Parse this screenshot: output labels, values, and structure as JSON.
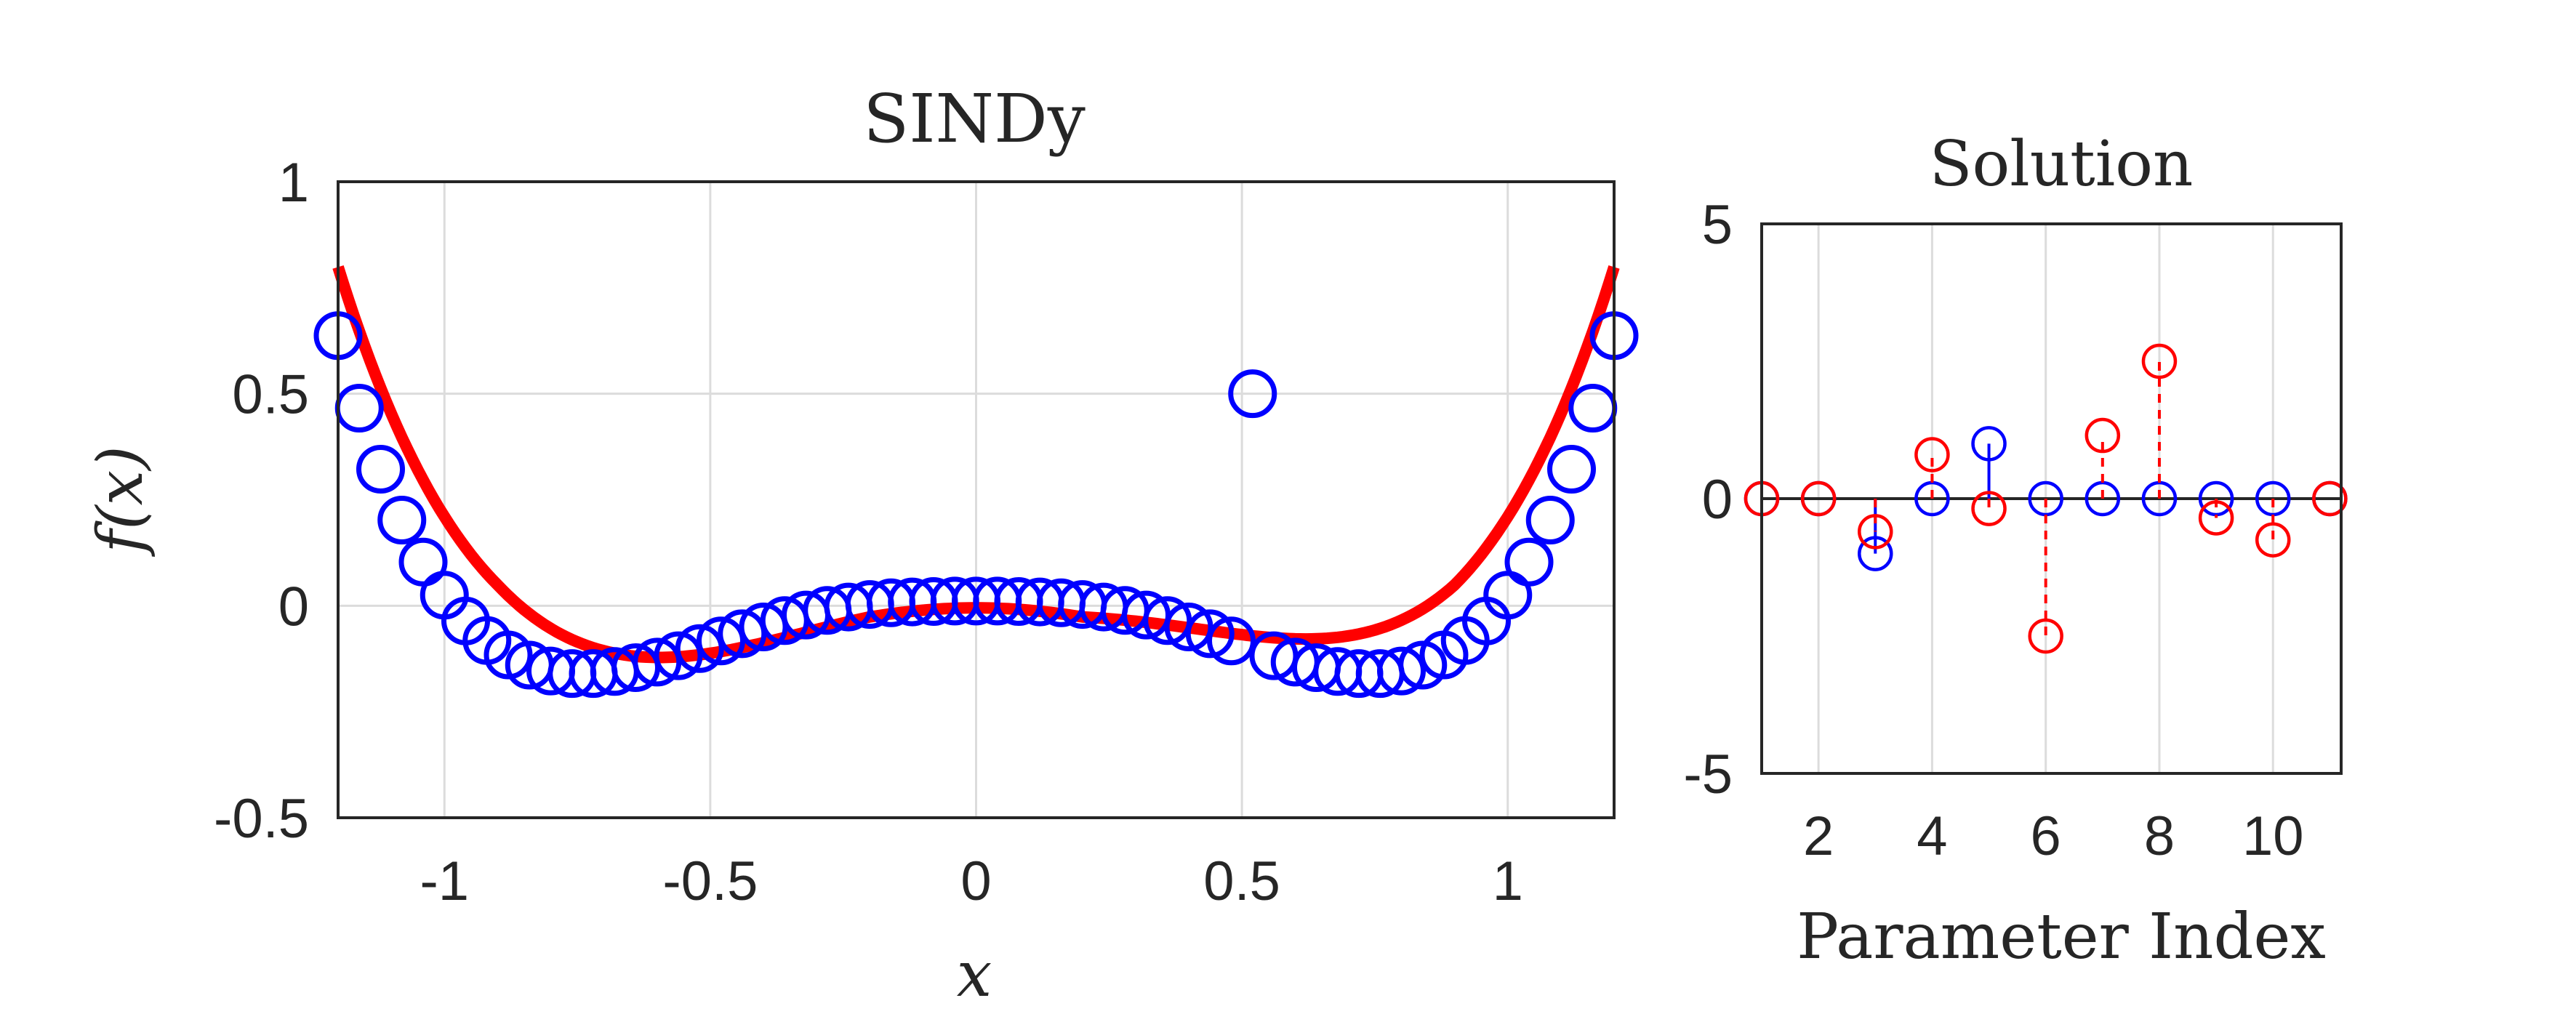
{
  "chart_data": [
    {
      "type": "scatter",
      "title": "SINDy",
      "xlabel": "x",
      "ylabel": "f(x)",
      "xlim": [
        -1.2,
        1.2
      ],
      "ylim": [
        -0.5,
        1
      ],
      "xticks": [
        -1,
        -0.5,
        0,
        0.5,
        1
      ],
      "xtick_labels": [
        "-1",
        "-0.5",
        "0",
        "0.5",
        "1"
      ],
      "yticks": [
        -0.5,
        0,
        0.5,
        1
      ],
      "ytick_labels": [
        "-0.5",
        "0",
        "0.5",
        "1"
      ],
      "grid": true,
      "series": [
        {
          "marker": "circle",
          "color": "#0000ff",
          "points": [
            [
              -1.2,
              0.637
            ],
            [
              -1.16,
              0.466
            ],
            [
              -1.12,
              0.322
            ],
            [
              -1.08,
              0.202
            ],
            [
              -1.04,
              0.103
            ],
            [
              -1.0,
              0.025
            ],
            [
              -0.96,
              -0.036
            ],
            [
              -0.92,
              -0.082
            ],
            [
              -0.88,
              -0.116
            ],
            [
              -0.84,
              -0.14
            ],
            [
              -0.8,
              -0.154
            ],
            [
              -0.76,
              -0.16
            ],
            [
              -0.72,
              -0.16
            ],
            [
              -0.68,
              -0.155
            ],
            [
              -0.64,
              -0.146
            ],
            [
              -0.6,
              -0.133
            ],
            [
              -0.56,
              -0.118
            ],
            [
              -0.52,
              -0.101
            ],
            [
              -0.48,
              -0.083
            ],
            [
              -0.44,
              -0.066
            ],
            [
              -0.4,
              -0.05
            ],
            [
              -0.36,
              -0.035
            ],
            [
              -0.32,
              -0.022
            ],
            [
              -0.28,
              -0.011
            ],
            [
              -0.24,
              -0.003
            ],
            [
              -0.2,
              0.003
            ],
            [
              -0.16,
              0.007
            ],
            [
              -0.12,
              0.009
            ],
            [
              -0.08,
              0.01
            ],
            [
              -0.04,
              0.011
            ],
            [
              0.0,
              0.011
            ],
            [
              0.04,
              0.011
            ],
            [
              0.08,
              0.01
            ],
            [
              0.12,
              0.009
            ],
            [
              0.16,
              0.007
            ],
            [
              0.2,
              0.003
            ],
            [
              0.24,
              -0.003
            ],
            [
              0.28,
              -0.011
            ],
            [
              0.32,
              -0.022
            ],
            [
              0.36,
              -0.035
            ],
            [
              0.4,
              -0.05
            ],
            [
              0.44,
              -0.066
            ],
            [
              0.48,
              -0.083
            ],
            [
              0.52,
              0.5
            ],
            [
              0.56,
              -0.118
            ],
            [
              0.6,
              -0.133
            ],
            [
              0.64,
              -0.146
            ],
            [
              0.68,
              -0.155
            ],
            [
              0.72,
              -0.16
            ],
            [
              0.76,
              -0.16
            ],
            [
              0.8,
              -0.154
            ],
            [
              0.84,
              -0.14
            ],
            [
              0.88,
              -0.116
            ],
            [
              0.92,
              -0.082
            ],
            [
              0.96,
              -0.036
            ],
            [
              1.0,
              0.025
            ],
            [
              1.04,
              0.103
            ],
            [
              1.08,
              0.202
            ],
            [
              1.12,
              0.322
            ],
            [
              1.16,
              0.466
            ],
            [
              1.2,
              0.637
            ]
          ]
        },
        {
          "type": "line",
          "color": "#ff0000",
          "coefficients": [
            0,
            0,
            -0.565,
            0.78,
            -0.2,
            -2.44,
            1.13,
            2.5,
            -0.285,
            -0.71,
            0
          ]
        }
      ]
    },
    {
      "type": "stem",
      "title": "Solution",
      "xlabel": "Parameter Index",
      "ylabel": "",
      "xlim": [
        1,
        11.2
      ],
      "ylim": [
        -5,
        5
      ],
      "xticks": [
        2,
        4,
        6,
        8,
        10
      ],
      "xtick_labels": [
        "2",
        "4",
        "6",
        "8",
        "10"
      ],
      "yticks": [
        -5,
        0,
        5
      ],
      "ytick_labels": [
        "-5",
        "0",
        "5"
      ],
      "grid": true,
      "series": [
        {
          "color": "#0000ff",
          "linestyle": "solid",
          "x": [
            1,
            2,
            3,
            4,
            5,
            6,
            7,
            8,
            9,
            10,
            11
          ],
          "values": [
            0,
            0,
            -1,
            0,
            1,
            0,
            0,
            0,
            0,
            0,
            0
          ]
        },
        {
          "color": "#ff0000",
          "linestyle": "dashed",
          "x": [
            1,
            2,
            3,
            4,
            5,
            6,
            7,
            8,
            9,
            10,
            11
          ],
          "values": [
            0,
            0,
            -0.6,
            0.8,
            -0.18,
            -2.5,
            1.15,
            2.5,
            -0.35,
            -0.75,
            0
          ]
        }
      ]
    }
  ]
}
